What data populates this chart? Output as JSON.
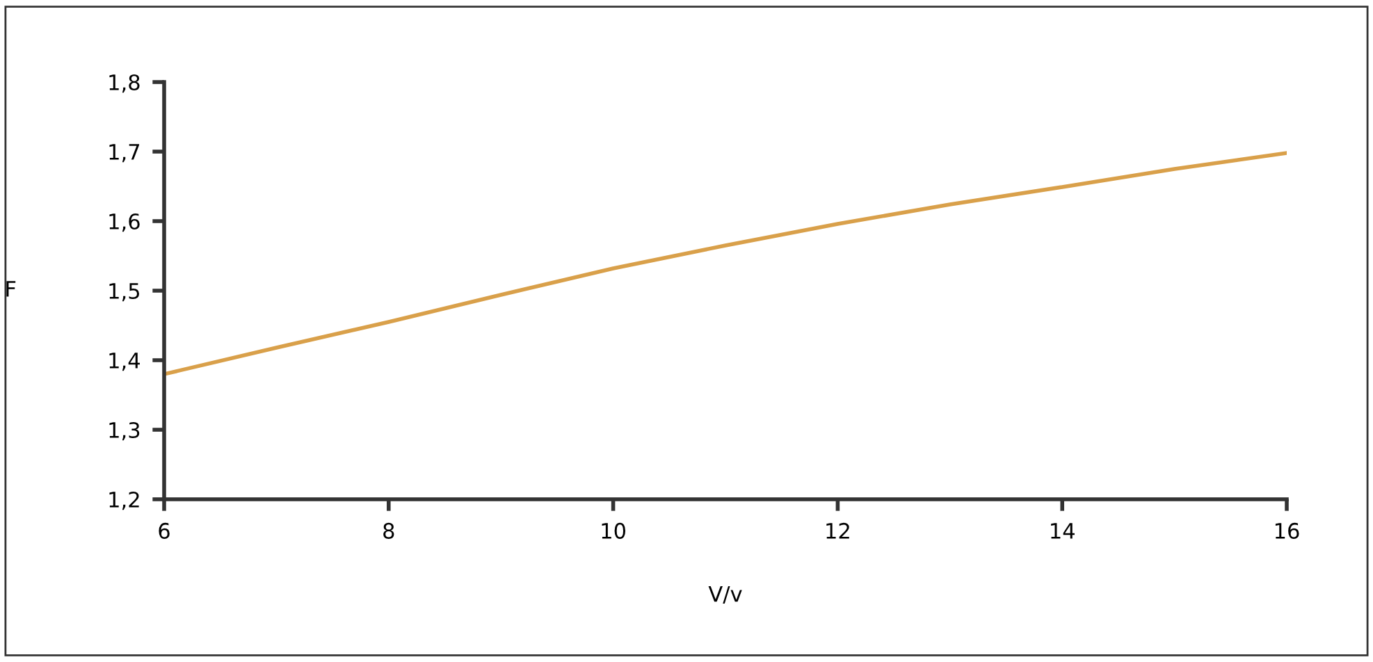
{
  "chart_data": {
    "type": "line",
    "xlabel": "V/v",
    "ylabel": "F",
    "x": [
      6,
      7,
      8,
      9,
      10,
      11,
      12,
      13,
      14,
      15,
      16
    ],
    "series": [
      {
        "color": "#d9a04a",
        "values": [
          1.38,
          1.418,
          1.455,
          1.494,
          1.532,
          1.565,
          1.596,
          1.624,
          1.649,
          1.675,
          1.698
        ]
      }
    ],
    "xlim": [
      6,
      16
    ],
    "xticks": [
      6,
      8,
      10,
      12,
      14,
      16
    ],
    "ylim": [
      1.2,
      1.8
    ],
    "yticks": [
      {
        "value": 1.2,
        "label": "1,2"
      },
      {
        "value": 1.3,
        "label": "1,3"
      },
      {
        "value": 1.4,
        "label": "1,4"
      },
      {
        "value": 1.5,
        "label": "1,5"
      },
      {
        "value": 1.6,
        "label": "1,6"
      },
      {
        "value": 1.7,
        "label": "1,7"
      },
      {
        "value": 1.8,
        "label": "1,8"
      }
    ],
    "grid": false,
    "legend": false,
    "marker": "none",
    "line_style": "solid"
  }
}
